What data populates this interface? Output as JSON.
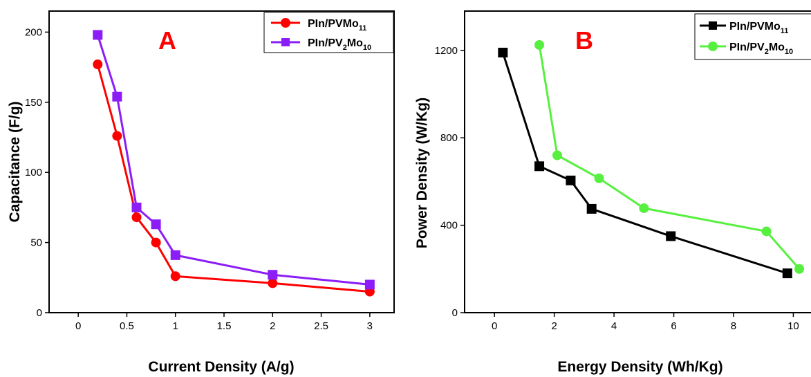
{
  "chart_data": [
    {
      "type": "line",
      "panel_label": "A",
      "xlabel": "Current Density (A/g)",
      "ylabel": "Capacitance (F/g)",
      "xlim": [
        -0.3,
        3.25
      ],
      "ylim": [
        0,
        215
      ],
      "x_ticks": [
        "0",
        "0.5",
        "1",
        "1.5",
        "2",
        "2.5",
        "3"
      ],
      "y_ticks": [
        "0",
        "50",
        "100",
        "150",
        "200"
      ],
      "legend_position": "top-right",
      "series": [
        {
          "name": "PIn/PVMo11",
          "name_main": "PIn/PVMo",
          "name_sub": "11",
          "color": "#ff0000",
          "marker": "circle",
          "points": [
            [
              0.2,
              177
            ],
            [
              0.4,
              126
            ],
            [
              0.6,
              68
            ],
            [
              0.8,
              50
            ],
            [
              1.0,
              26
            ],
            [
              2.0,
              21
            ],
            [
              3.0,
              15
            ]
          ]
        },
        {
          "name": "PIn/PV2Mo10",
          "name_main": "PIn/PV",
          "name_mid": "2",
          "name_main2": "Mo",
          "name_sub": "10",
          "color": "#8b1df7",
          "marker": "square",
          "points": [
            [
              0.2,
              198
            ],
            [
              0.4,
              154
            ],
            [
              0.6,
              75
            ],
            [
              0.8,
              63
            ],
            [
              1.0,
              41
            ],
            [
              2.0,
              27
            ],
            [
              3.0,
              20
            ]
          ]
        }
      ]
    },
    {
      "type": "line",
      "panel_label": "B",
      "xlabel": "Energy Density (Wh/Kg)",
      "ylabel": "Power Density (W/Kg)",
      "xlim": [
        -1.0,
        10.8
      ],
      "ylim": [
        0,
        1380
      ],
      "x_ticks": [
        "0",
        "2",
        "4",
        "6",
        "8",
        "10"
      ],
      "y_ticks": [
        "0",
        "400",
        "800",
        "1200"
      ],
      "legend_position": "top-right",
      "series": [
        {
          "name": "PIn/PVMo11",
          "name_main": "PIn/PVMo",
          "name_sub": "11",
          "color": "#000000",
          "marker": "square",
          "points": [
            [
              0.28,
              1190
            ],
            [
              1.5,
              670
            ],
            [
              2.55,
              605
            ],
            [
              3.25,
              475
            ],
            [
              5.9,
              350
            ],
            [
              9.8,
              180
            ]
          ]
        },
        {
          "name": "PIn/PV2Mo10",
          "name_main": "PIn/PV",
          "name_mid": "2",
          "name_main2": "Mo",
          "name_sub": "10",
          "color": "#58f040",
          "marker": "circle",
          "points": [
            [
              1.5,
              1225
            ],
            [
              2.1,
              720
            ],
            [
              3.5,
              615
            ],
            [
              5.0,
              478
            ],
            [
              9.1,
              372
            ],
            [
              10.2,
              200
            ]
          ]
        }
      ]
    }
  ]
}
